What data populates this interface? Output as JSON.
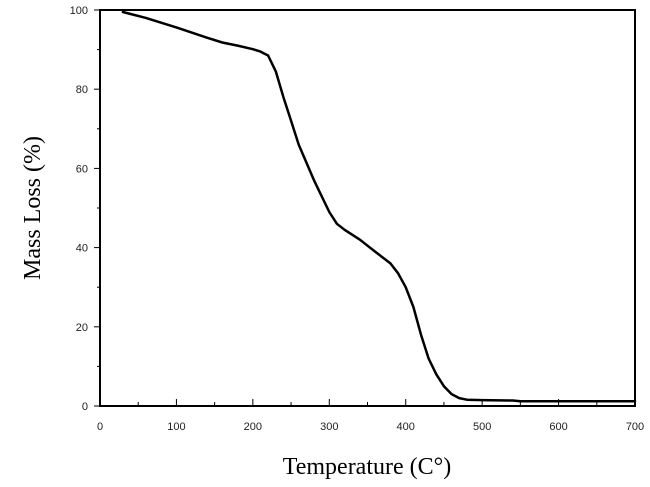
{
  "chart_data": {
    "type": "line",
    "xlabel": "Temperature  (C°)",
    "ylabel": "Mass Loss (%)",
    "xlim": [
      0,
      700
    ],
    "ylim": [
      0,
      100
    ],
    "x_ticks": [
      "0",
      "100",
      "200",
      "300",
      "400",
      "500",
      "600",
      "700"
    ],
    "y_ticks": [
      "0",
      "20",
      "40",
      "60",
      "80",
      "100"
    ],
    "grid": false,
    "legend": "none",
    "colors": {
      "line": "#000000",
      "axis": "#000000",
      "background": "#ffffff"
    },
    "series": [
      {
        "x": [
          30,
          40,
          60,
          80,
          100,
          120,
          140,
          160,
          180,
          200,
          210,
          220,
          230,
          240,
          250,
          260,
          280,
          300,
          310,
          320,
          340,
          360,
          380,
          390,
          400,
          410,
          420,
          430,
          440,
          450,
          460,
          470,
          480,
          500,
          540,
          550,
          600,
          650,
          700
        ],
        "y": [
          99.5,
          99,
          98,
          96.8,
          95.6,
          94.3,
          93,
          91.8,
          91,
          90.1,
          89.5,
          88.5,
          84.5,
          78,
          72,
          66,
          57,
          49,
          46,
          44.5,
          42,
          39,
          36,
          33.5,
          30,
          25,
          18,
          12,
          8,
          5,
          3,
          2,
          1.6,
          1.5,
          1.4,
          1.2,
          1.2,
          1.2,
          1.2
        ]
      }
    ]
  }
}
